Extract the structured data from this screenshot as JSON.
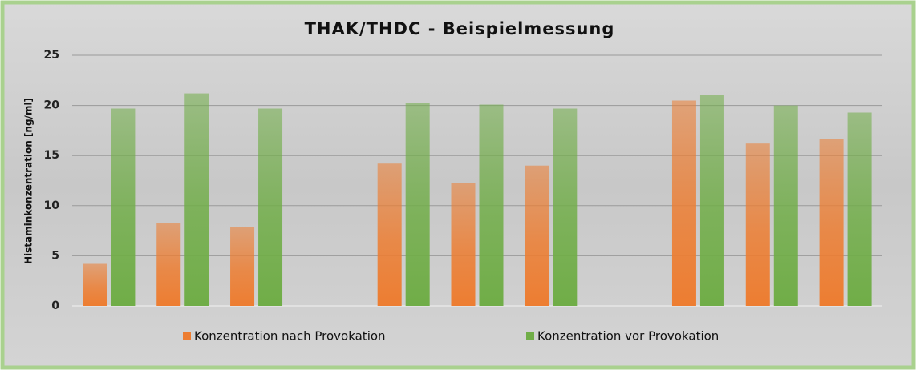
{
  "chart_data": {
    "type": "bar",
    "title": "THAK/THDC - Beispielmessung",
    "y_label": "Histaminkonzentration [ng/ml]",
    "categories": [
      null,
      null,
      null,
      null,
      null,
      null,
      null,
      null,
      null,
      null,
      null
    ],
    "series": [
      {
        "name": "Konzentration nach Provokation",
        "color": "#ed7d31",
        "values": [
          4.2,
          8.3,
          7.9,
          null,
          14.2,
          12.3,
          14.0,
          null,
          20.5,
          16.2,
          16.7
        ]
      },
      {
        "name": "Konzentration vor Provokation",
        "color": "#70ad47",
        "values": [
          19.7,
          21.2,
          19.7,
          null,
          20.3,
          20.1,
          19.7,
          null,
          21.1,
          20.0,
          19.3
        ]
      }
    ],
    "ylim": [
      0,
      25
    ],
    "yticks": [
      0,
      5,
      10,
      15,
      20,
      25
    ],
    "grid": true,
    "legend": "bottom"
  }
}
